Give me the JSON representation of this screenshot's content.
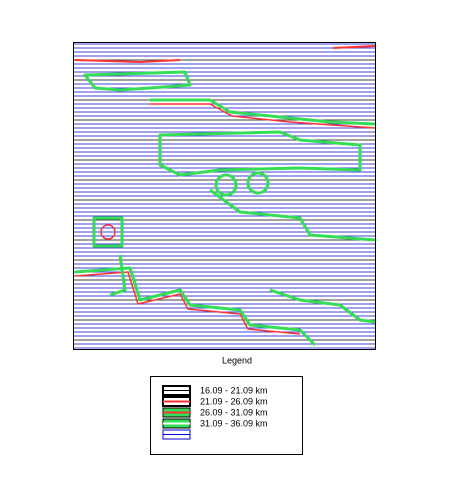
{
  "legend": {
    "title": "Legend",
    "items": [
      {
        "label": "16.09 - 21.09 km"
      },
      {
        "label": "21.09 - 26.09 km"
      },
      {
        "label": "26.09 - 31.09 km"
      },
      {
        "label": "31.09 - 36.09 km"
      }
    ]
  }
}
